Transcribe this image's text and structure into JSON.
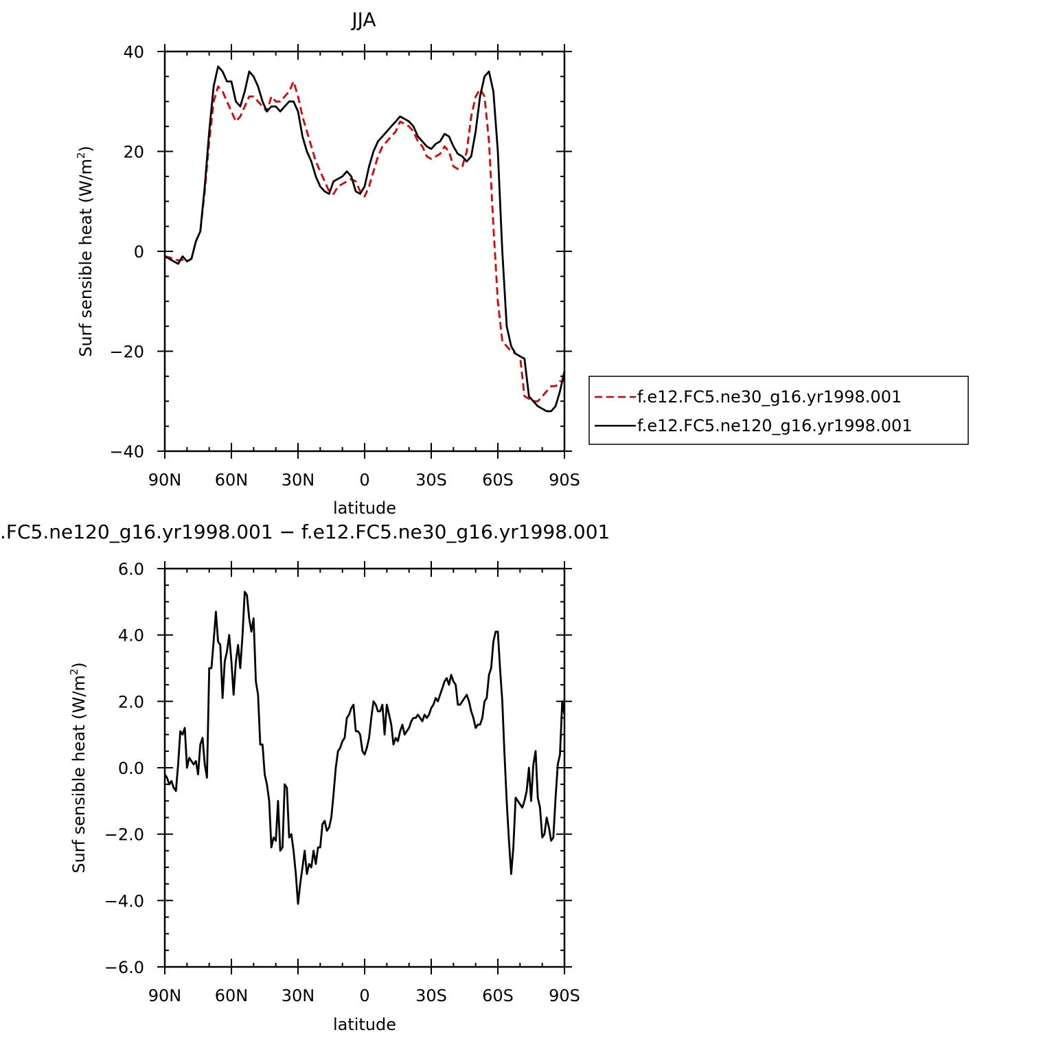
{
  "chart_data": [
    {
      "type": "line",
      "title": "JJA",
      "xlabel": "latitude",
      "ylabel_main": "Surf sensible heat (W/m",
      "ylabel_sup": "2",
      "ylabel_end": ")",
      "xlim": [
        90,
        -90
      ],
      "ylim": [
        -40,
        40
      ],
      "xticks": [
        {
          "value": 90,
          "label": "90N"
        },
        {
          "value": 60,
          "label": "60N"
        },
        {
          "value": 30,
          "label": "30N"
        },
        {
          "value": 0,
          "label": "0"
        },
        {
          "value": -30,
          "label": "30S"
        },
        {
          "value": -60,
          "label": "60S"
        },
        {
          "value": -90,
          "label": "90S"
        }
      ],
      "yticks": [
        {
          "value": 40,
          "label": "40"
        },
        {
          "value": 20,
          "label": "20"
        },
        {
          "value": 0,
          "label": "0"
        },
        {
          "value": -20,
          "label": "−20"
        },
        {
          "value": -40,
          "label": "−40"
        }
      ],
      "legend_placement": "right",
      "series": [
        {
          "name": "f.e12.FC5.ne30_g16.yr1998.001",
          "color": "#e00000",
          "dash": "dashed",
          "x": [
            90,
            88,
            86,
            84,
            82,
            80,
            78,
            76,
            74,
            72,
            70,
            68,
            66,
            64,
            62,
            60,
            58,
            56,
            54,
            52,
            50,
            48,
            46,
            44,
            42,
            40,
            38,
            36,
            34,
            32,
            30,
            28,
            26,
            24,
            22,
            20,
            18,
            16,
            14,
            12,
            10,
            8,
            6,
            4,
            2,
            0,
            -2,
            -4,
            -6,
            -8,
            -10,
            -12,
            -14,
            -16,
            -18,
            -20,
            -22,
            -24,
            -26,
            -28,
            -30,
            -32,
            -34,
            -36,
            -38,
            -40,
            -42,
            -44,
            -46,
            -48,
            -50,
            -52,
            -54,
            -56,
            -58,
            -60,
            -62,
            -64,
            -66,
            -68,
            -70,
            -72,
            -74,
            -76,
            -78,
            -80,
            -82,
            -84,
            -86,
            -88,
            -90
          ],
          "y": [
            -1,
            -1.2,
            -1.5,
            -1.8,
            -1.7,
            -2,
            -1.5,
            2,
            4,
            12,
            22,
            30,
            33,
            32,
            30,
            28,
            26,
            27,
            29,
            31,
            31,
            30,
            29,
            28,
            31,
            30,
            30,
            31,
            32,
            34,
            31,
            27,
            24,
            21,
            18,
            16,
            14,
            12,
            11.5,
            13,
            13.5,
            14,
            14.5,
            14,
            12,
            11,
            13,
            16,
            19,
            21,
            22,
            23,
            24,
            26,
            25.5,
            25,
            24,
            22,
            21,
            19,
            18.5,
            19,
            19.5,
            21,
            20,
            17,
            16.5,
            17,
            20,
            27,
            31,
            32.5,
            31,
            22,
            5,
            -10,
            -18,
            -19,
            -20,
            -20.5,
            -21,
            -29,
            -29.5,
            -30,
            -30,
            -29,
            -28,
            -27,
            -27,
            -26,
            -26
          ]
        },
        {
          "name": "f.e12.FC5.ne120_g16.yr1998.001",
          "color": "#000000",
          "dash": "solid",
          "x": [
            90,
            88,
            86,
            84,
            82,
            80,
            78,
            76,
            74,
            72,
            70,
            68,
            66,
            64,
            62,
            60,
            58,
            56,
            54,
            52,
            50,
            48,
            46,
            44,
            42,
            40,
            38,
            36,
            34,
            32,
            30,
            28,
            26,
            24,
            22,
            20,
            18,
            16,
            14,
            12,
            10,
            8,
            6,
            4,
            2,
            0,
            -2,
            -4,
            -6,
            -8,
            -10,
            -12,
            -14,
            -16,
            -18,
            -20,
            -22,
            -24,
            -26,
            -28,
            -30,
            -32,
            -34,
            -36,
            -38,
            -40,
            -42,
            -44,
            -46,
            -48,
            -50,
            -52,
            -54,
            -56,
            -58,
            -60,
            -62,
            -64,
            -66,
            -68,
            -70,
            -72,
            -74,
            -76,
            -78,
            -80,
            -82,
            -84,
            -86,
            -88,
            -90
          ],
          "y": [
            -1,
            -1.5,
            -2,
            -2.5,
            -1,
            -2,
            -1.5,
            2,
            4,
            13,
            24,
            33,
            37,
            36,
            34,
            34,
            30,
            29,
            32,
            36,
            35,
            33,
            30,
            28,
            29,
            29,
            28,
            29,
            30,
            30,
            28,
            23,
            20,
            18,
            15,
            13,
            12,
            11.5,
            14,
            14.5,
            15,
            16,
            15,
            12,
            11.5,
            13,
            17,
            20,
            22,
            23,
            24,
            25,
            26,
            27,
            26.5,
            26,
            25,
            23,
            22,
            21,
            20.5,
            21.5,
            22,
            23.5,
            23,
            21,
            19.5,
            19,
            18,
            19,
            24,
            31,
            35,
            36,
            32,
            20,
            0,
            -15,
            -19,
            -20.5,
            -21,
            -21.5,
            -29,
            -30,
            -31,
            -31.5,
            -32,
            -32,
            -31,
            -28,
            -24
          ]
        }
      ]
    },
    {
      "type": "line",
      "title": ".FC5.ne120_g16.yr1998.001 − f.e12.FC5.ne30_g16.yr1998.001",
      "xlabel": "latitude",
      "ylabel_main": "Surf sensible heat (W/m",
      "ylabel_sup": "2",
      "ylabel_end": ")",
      "xlim": [
        90,
        -90
      ],
      "ylim": [
        -6,
        6
      ],
      "xticks": [
        {
          "value": 90,
          "label": "90N"
        },
        {
          "value": 60,
          "label": "60N"
        },
        {
          "value": 30,
          "label": "30N"
        },
        {
          "value": 0,
          "label": "0"
        },
        {
          "value": -30,
          "label": "30S"
        },
        {
          "value": -60,
          "label": "60S"
        },
        {
          "value": -90,
          "label": "90S"
        }
      ],
      "yticks": [
        {
          "value": 6,
          "label": "6.0"
        },
        {
          "value": 4,
          "label": "4.0"
        },
        {
          "value": 2,
          "label": "2.0"
        },
        {
          "value": 0,
          "label": "0.0"
        },
        {
          "value": -2,
          "label": "−2.0"
        },
        {
          "value": -4,
          "label": "−4.0"
        },
        {
          "value": -6,
          "label": "−6.0"
        }
      ],
      "series": [
        {
          "color": "#000000",
          "dash": "solid",
          "x": [
            90,
            89,
            88,
            87,
            86,
            85,
            84,
            83,
            82,
            81,
            80,
            79,
            78,
            77,
            76,
            75,
            74,
            73,
            72,
            71,
            70,
            69,
            68,
            67,
            66,
            65,
            64,
            63,
            62,
            61,
            60,
            59,
            58,
            57,
            56,
            55,
            54,
            53,
            52,
            51,
            50,
            49,
            48,
            47,
            46,
            45,
            44,
            43,
            42,
            41,
            40,
            39,
            38,
            37,
            36,
            35,
            34,
            33,
            32,
            31,
            30,
            29,
            28,
            27,
            26,
            25,
            24,
            23,
            22,
            21,
            20,
            19,
            18,
            17,
            16,
            15,
            14,
            13,
            12,
            11,
            10,
            9,
            8,
            7,
            6,
            5,
            4,
            3,
            2,
            1,
            0,
            -1,
            -2,
            -3,
            -4,
            -5,
            -6,
            -7,
            -8,
            -9,
            -10,
            -11,
            -12,
            -13,
            -14,
            -15,
            -16,
            -17,
            -18,
            -19,
            -20,
            -21,
            -22,
            -23,
            -24,
            -25,
            -26,
            -27,
            -28,
            -29,
            -30,
            -31,
            -32,
            -33,
            -34,
            -35,
            -36,
            -37,
            -38,
            -39,
            -40,
            -41,
            -42,
            -43,
            -44,
            -45,
            -46,
            -47,
            -48,
            -49,
            -50,
            -51,
            -52,
            -53,
            -54,
            -55,
            -56,
            -57,
            -58,
            -59,
            -60,
            -61,
            -62,
            -63,
            -64,
            -65,
            -66,
            -67,
            -68,
            -69,
            -70,
            -71,
            -72,
            -73,
            -74,
            -75,
            -76,
            -77,
            -78,
            -79,
            -80,
            -81,
            -82,
            -83,
            -84,
            -85,
            -86,
            -87,
            -88,
            -89,
            -90
          ],
          "y": [
            -0.2,
            -0.3,
            -0.5,
            -0.4,
            -0.6,
            -0.7,
            0.1,
            1.1,
            1.0,
            1.2,
            0.0,
            0.3,
            0.2,
            0.1,
            0.2,
            -0.2,
            0.7,
            0.9,
            0.1,
            -0.3,
            3.0,
            3.0,
            3.8,
            4.7,
            3.8,
            3.7,
            2.1,
            3.2,
            3.5,
            4.0,
            3.2,
            2.2,
            3.2,
            3.7,
            3.0,
            4.0,
            5.3,
            5.2,
            4.5,
            4.1,
            4.5,
            2.6,
            2.2,
            0.7,
            0.7,
            -0.2,
            -0.5,
            -1.0,
            -2.4,
            -2.1,
            -2.2,
            -1.0,
            -2.5,
            -2.4,
            -0.5,
            -0.6,
            -2.1,
            -2.0,
            -2.5,
            -3.2,
            -4.1,
            -3.5,
            -3.0,
            -2.5,
            -3.2,
            -2.9,
            -3.0,
            -2.5,
            -2.9,
            -2.4,
            -2.4,
            -1.7,
            -1.6,
            -1.9,
            -1.8,
            -1.5,
            -0.8,
            0.0,
            0.5,
            0.6,
            0.8,
            0.9,
            1.5,
            1.6,
            1.8,
            1.9,
            1.1,
            1.1,
            1.0,
            0.5,
            0.4,
            0.6,
            0.9,
            1.5,
            2.0,
            1.9,
            1.7,
            1.7,
            1.9,
            1.0,
            1.9,
            1.6,
            1.3,
            0.7,
            0.9,
            0.8,
            1.1,
            1.3,
            1.0,
            1.1,
            1.2,
            1.4,
            1.5,
            1.5,
            1.6,
            1.5,
            1.4,
            1.6,
            1.5,
            1.6,
            1.8,
            1.9,
            2.1,
            2.0,
            2.2,
            2.4,
            2.6,
            2.7,
            2.5,
            2.8,
            2.6,
            2.5,
            1.9,
            1.9,
            2.0,
            2.1,
            2.2,
            2.0,
            1.7,
            1.5,
            1.2,
            1.3,
            1.3,
            1.5,
            2.0,
            2.1,
            2.8,
            3.0,
            3.8,
            4.1,
            4.1,
            3.0,
            2.0,
            0.4,
            -1.0,
            -2.2,
            -3.2,
            -2.4,
            -0.9,
            -1.0,
            -1.1,
            -1.2,
            -1.0,
            -0.7,
            0.0,
            -1.0,
            0.1,
            0.5,
            -0.9,
            -1.2,
            -2.1,
            -2.0,
            -1.5,
            -1.8,
            -2.2,
            -2.1,
            -0.9,
            0.1,
            0.4,
            2.0,
            1.6
          ]
        }
      ]
    }
  ]
}
